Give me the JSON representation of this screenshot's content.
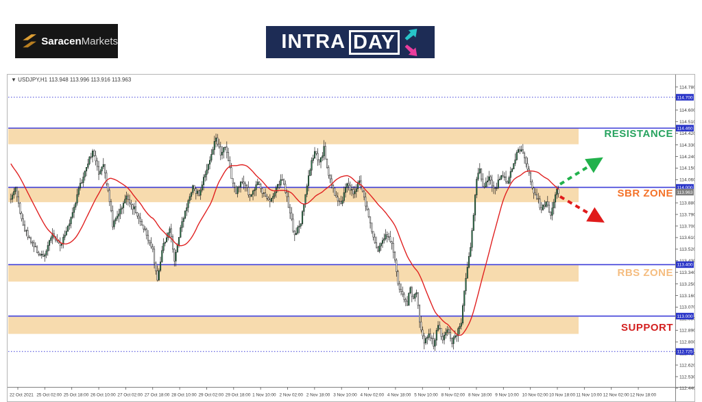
{
  "header": {
    "brand": {
      "name_bold": "Saracen",
      "name_light": "Markets"
    },
    "product": {
      "text_main": "INTRA",
      "text_boxed": "DAY",
      "arrow_up_color": "#27c4c9",
      "arrow_down_color": "#ea3d9d",
      "bg": "#1d2c55"
    }
  },
  "chart": {
    "symbol_line": "▼ USDJPY,H1  113.948 113.996 113.916 113.963",
    "labels": {
      "resistance": "RESISTANCE",
      "sbr": "SBR ZONE",
      "rbs": "RBS ZONE",
      "support": "SUPPORT"
    }
  },
  "chart_data": {
    "type": "candlestick",
    "symbol": "USDJPY",
    "timeframe": "H1",
    "last_ohlc": {
      "open": 113.948,
      "high": 113.996,
      "low": 113.916,
      "close": 113.963
    },
    "current_price": "113.963",
    "ylim": [
      112.4,
      114.86
    ],
    "price_axis_ticks": [
      "114.780",
      "114.600",
      "114.510",
      "114.420",
      "114.330",
      "114.240",
      "114.150",
      "114.060",
      "113.880",
      "113.790",
      "113.700",
      "113.610",
      "113.520",
      "113.430",
      "113.340",
      "113.250",
      "113.160",
      "113.070",
      "112.980",
      "112.890",
      "112.800",
      "112.710",
      "112.620",
      "112.530",
      "112.440"
    ],
    "highlighted_prices": [
      "114.700",
      "114.460",
      "114.000",
      "113.400",
      "113.000",
      "112.725"
    ],
    "time_axis_labels": [
      "22 Oct 2021",
      "25 Oct 02:00",
      "25 Oct 18:00",
      "26 Oct 10:00",
      "27 Oct 02:00",
      "27 Oct 18:00",
      "28 Oct 10:00",
      "29 Oct 02:00",
      "29 Oct 18:00",
      "1 Nov 10:00",
      "2 Nov 02:00",
      "2 Nov 18:00",
      "3 Nov 10:00",
      "4 Nov 02:00",
      "4 Nov 18:00",
      "5 Nov 10:00",
      "8 Nov 02:00",
      "8 Nov 18:00",
      "9 Nov 10:00",
      "10 Nov 02:00",
      "10 Nov 18:00",
      "11 Nov 10:00",
      "12 Nov 02:00",
      "12 Nov 18:00"
    ],
    "horizontal_lines": {
      "solid": [
        114.46,
        114.0,
        113.4,
        113.0
      ],
      "dotted": [
        114.7,
        112.725
      ]
    },
    "zones": [
      {
        "label": "resistance",
        "top": 114.46,
        "bottom": 114.335
      },
      {
        "label": "sbr",
        "top": 114.0,
        "bottom": 113.885
      },
      {
        "label": "rbs",
        "top": 113.395,
        "bottom": 113.268
      },
      {
        "label": "support",
        "top": 112.995,
        "bottom": 112.862
      }
    ],
    "annotations": [
      {
        "name": "bullish-projection-arrow",
        "direction": "up"
      },
      {
        "name": "bearish-projection-arrow",
        "direction": "down"
      }
    ],
    "candle_count": 356,
    "price_path": [
      [
        0,
        113.92
      ],
      [
        3,
        113.99
      ],
      [
        8,
        113.7
      ],
      [
        16,
        113.52
      ],
      [
        21,
        113.46
      ],
      [
        27,
        113.63
      ],
      [
        32,
        113.55
      ],
      [
        38,
        113.72
      ],
      [
        44,
        113.98
      ],
      [
        50,
        114.2
      ],
      [
        53,
        114.27
      ],
      [
        57,
        114.12
      ],
      [
        60,
        114.18
      ],
      [
        64,
        113.9
      ],
      [
        66,
        113.7
      ],
      [
        70,
        113.8
      ],
      [
        75,
        113.93
      ],
      [
        80,
        113.83
      ],
      [
        87,
        113.67
      ],
      [
        92,
        113.5
      ],
      [
        95,
        113.28
      ],
      [
        99,
        113.56
      ],
      [
        103,
        113.68
      ],
      [
        106,
        113.44
      ],
      [
        109,
        113.62
      ],
      [
        114,
        113.86
      ],
      [
        118,
        114.0
      ],
      [
        122,
        113.94
      ],
      [
        126,
        114.12
      ],
      [
        130,
        114.25
      ],
      [
        133,
        114.4
      ],
      [
        136,
        114.26
      ],
      [
        139,
        114.31
      ],
      [
        143,
        114.08
      ],
      [
        146,
        113.97
      ],
      [
        150,
        114.06
      ],
      [
        155,
        113.93
      ],
      [
        160,
        114.03
      ],
      [
        164,
        113.94
      ],
      [
        168,
        113.88
      ],
      [
        172,
        113.99
      ],
      [
        176,
        114.06
      ],
      [
        180,
        113.86
      ],
      [
        184,
        113.62
      ],
      [
        188,
        113.73
      ],
      [
        193,
        114.1
      ],
      [
        197,
        114.28
      ],
      [
        200,
        114.18
      ],
      [
        203,
        114.3
      ],
      [
        206,
        114.1
      ],
      [
        210,
        113.95
      ],
      [
        214,
        113.88
      ],
      [
        218,
        114.02
      ],
      [
        222,
        113.95
      ],
      [
        226,
        114.05
      ],
      [
        229,
        113.92
      ],
      [
        232,
        113.78
      ],
      [
        235,
        113.6
      ],
      [
        238,
        113.5
      ],
      [
        241,
        113.58
      ],
      [
        244,
        113.63
      ],
      [
        247,
        113.55
      ],
      [
        249,
        113.42
      ],
      [
        251,
        113.25
      ],
      [
        254,
        113.15
      ],
      [
        257,
        113.1
      ],
      [
        259,
        113.22
      ],
      [
        261,
        113.12
      ],
      [
        263,
        113.2
      ],
      [
        265,
        112.95
      ],
      [
        268,
        112.8
      ],
      [
        271,
        112.86
      ],
      [
        274,
        112.78
      ],
      [
        277,
        112.92
      ],
      [
        280,
        112.83
      ],
      [
        283,
        112.9
      ],
      [
        286,
        112.8
      ],
      [
        289,
        112.86
      ],
      [
        292,
        112.95
      ],
      [
        295,
        113.3
      ],
      [
        298,
        113.55
      ],
      [
        300,
        113.8
      ],
      [
        302,
        114.05
      ],
      [
        304,
        114.15
      ],
      [
        306,
        114.0
      ],
      [
        310,
        114.08
      ],
      [
        314,
        113.98
      ],
      [
        318,
        114.1
      ],
      [
        322,
        114.05
      ],
      [
        326,
        114.2
      ],
      [
        329,
        114.3
      ],
      [
        332,
        114.27
      ],
      [
        335,
        114.15
      ],
      [
        338,
        114.0
      ],
      [
        341,
        113.92
      ],
      [
        344,
        113.83
      ],
      [
        347,
        113.88
      ],
      [
        350,
        113.8
      ],
      [
        352,
        113.9
      ],
      [
        354,
        113.97
      ],
      [
        355,
        113.96
      ]
    ],
    "colors": {
      "zone_fill": "#f6d5a0",
      "level_line": "#3c3cd8",
      "candle_up": "#2e7d4f",
      "candle_down": "#ffffff",
      "candle_outline": "#1a1a1a",
      "ma_line": "#e02020",
      "arrow_up": "#22b14c",
      "arrow_down": "#e01b1b",
      "label_resistance": "#27a35f",
      "label_sbr": "#f4732a",
      "label_rbs": "#f5bd80",
      "label_support": "#d32020",
      "axis_highlight_bg": "#2a35c8",
      "current_price_bg": "#7d7d7d"
    }
  }
}
